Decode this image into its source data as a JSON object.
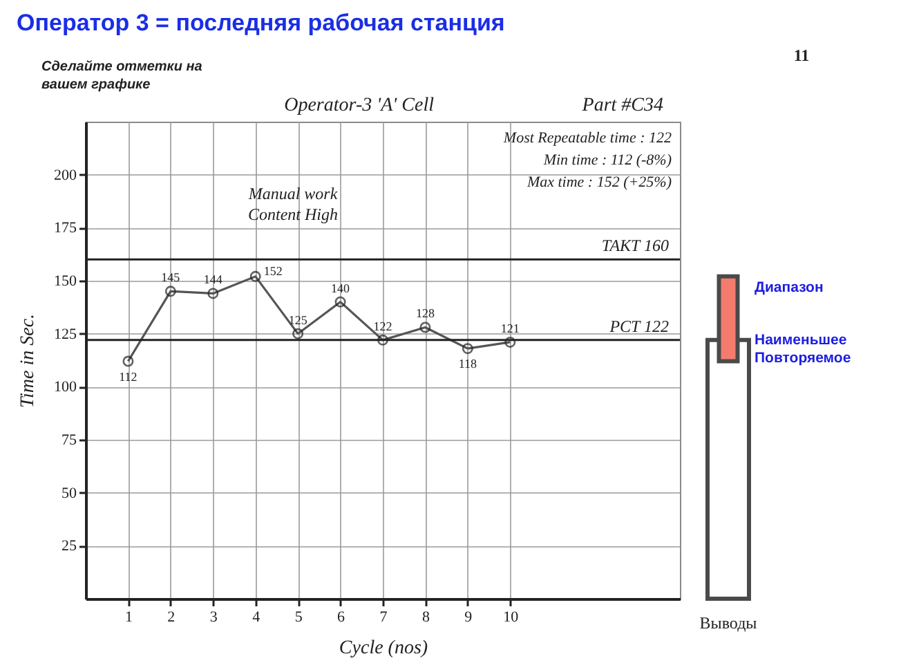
{
  "chart_data": [
    {
      "type": "line",
      "title": "Оператор 3 = последняя рабочая станция",
      "subtitle": "Operator-3 'A' Cell",
      "xlabel": "Cycle (nos)",
      "ylabel": "Time in Sec.",
      "x": [
        1,
        2,
        3,
        4,
        5,
        6,
        7,
        8,
        9,
        10
      ],
      "series": [
        {
          "color": "#555555",
          "values": [
            112,
            145,
            144,
            152,
            125,
            140,
            122,
            128,
            118,
            121
          ]
        }
      ],
      "xlim": [
        0,
        14
      ],
      "xticks": [
        1,
        2,
        3,
        4,
        5,
        6,
        7,
        8,
        9,
        10
      ],
      "ylim": [
        0,
        225
      ],
      "yticks": [
        25,
        50,
        75,
        100,
        125,
        150,
        175,
        200
      ],
      "grid": true,
      "marker": "circle",
      "line_style": "solid",
      "data_labels": true,
      "ref_lines": [
        {
          "axis": "y",
          "value": 160,
          "label": "TAKT 160"
        },
        {
          "axis": "y",
          "value": 122,
          "label": "PCT 122"
        }
      ],
      "annotations": [
        "Сделайте отметки на вашем графике",
        "Part #C34",
        "Most Repeatable time : 122",
        "Min time : 112 (-8%)",
        "Max time : 152 (+25%)",
        "Manual work Content High"
      ]
    },
    {
      "type": "bar",
      "categories": [
        "Выводы"
      ],
      "series": [
        {
          "name": "Наименьшее Повторяемое",
          "color": "#ffffff",
          "values": [
            122
          ]
        },
        {
          "name": "Диапазон",
          "color": "#f47c6e",
          "values": [
            40
          ],
          "base": [
            112
          ]
        }
      ],
      "ylim": [
        0,
        225
      ],
      "tick_labels": "x",
      "annotations": [
        "11"
      ]
    }
  ]
}
